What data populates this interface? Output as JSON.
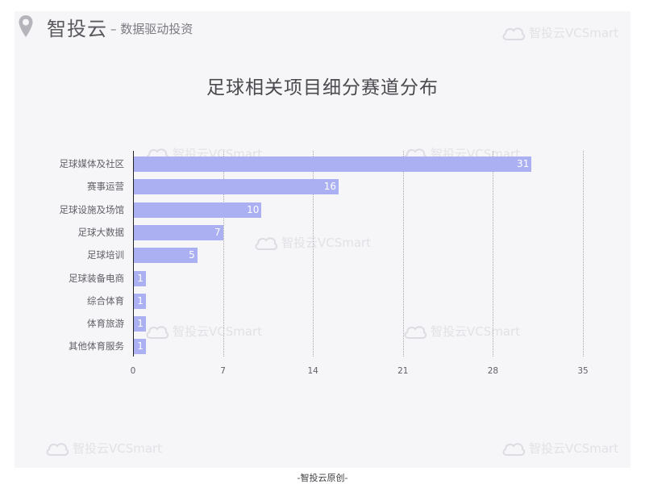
{
  "header": {
    "icon": "location-pin-icon",
    "brand": "智投云",
    "slogan": "– 数据驱动投资"
  },
  "watermark": {
    "icon": "cloud-logo-icon",
    "text": "智投云VCSmart"
  },
  "footer": {
    "text": "-智投云原创-"
  },
  "colors": {
    "bar": "#aab0f2",
    "panel_bg": "#f6f6f8",
    "value_label": "#ffffff"
  },
  "chart_data": {
    "type": "bar",
    "orientation": "horizontal",
    "title": "足球相关项目细分赛道分布",
    "xlabel": "",
    "ylabel": "",
    "categories": [
      "足球媒体及社区",
      "赛事运营",
      "足球设施及场馆",
      "足球大数据",
      "足球培训",
      "足球装备电商",
      "综合体育",
      "体育旅游",
      "其他体育服务"
    ],
    "values": [
      31,
      16,
      10,
      7,
      5,
      1,
      1,
      1,
      1
    ],
    "xlim": [
      0,
      35
    ],
    "xticks": [
      "0",
      "7",
      "14",
      "21",
      "28",
      "35"
    ],
    "grid": "vertical dotted",
    "legend": "none",
    "data_labels": true
  }
}
